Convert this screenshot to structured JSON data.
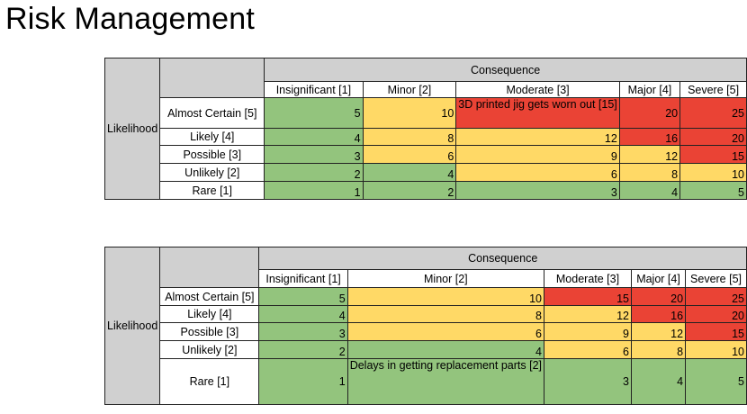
{
  "title": "Risk Management",
  "colors": {
    "green": "#93c47d",
    "yellow": "#ffd966",
    "red": "#ea4335",
    "gray": "#d0d0d0"
  },
  "matrix1": {
    "consequence": "Consequence",
    "likelihood": "Likelihood",
    "columns": [
      "Insignificant [1]",
      "Minor [2]",
      "Moderate [3]",
      "Major [4]",
      "Severe [5]"
    ],
    "rows": [
      {
        "label": "Almost Certain [5]",
        "cells": [
          "5",
          "10",
          "",
          "20",
          "25"
        ],
        "note": "3D printed jig gets worn out [15]"
      },
      {
        "label": "Likely [4]",
        "cells": [
          "4",
          "8",
          "12",
          "16",
          "20"
        ]
      },
      {
        "label": "Possible [3]",
        "cells": [
          "3",
          "6",
          "9",
          "12",
          "15"
        ]
      },
      {
        "label": "Unlikely [2]",
        "cells": [
          "2",
          "4",
          "6",
          "8",
          "10"
        ]
      },
      {
        "label": "Rare [1]",
        "cells": [
          "1",
          "2",
          "3",
          "4",
          "5"
        ]
      }
    ]
  },
  "matrix2": {
    "consequence": "Consequence",
    "likelihood": "Likelihood",
    "columns": [
      "Insignificant [1]",
      "Minor [2]",
      "Moderate [3]",
      "Major [4]",
      "Severe [5]"
    ],
    "rows": [
      {
        "label": "Almost Certain [5]",
        "cells": [
          "5",
          "10",
          "15",
          "20",
          "25"
        ]
      },
      {
        "label": "Likely [4]",
        "cells": [
          "4",
          "8",
          "12",
          "16",
          "20"
        ]
      },
      {
        "label": "Possible [3]",
        "cells": [
          "3",
          "6",
          "9",
          "12",
          "15"
        ]
      },
      {
        "label": "Unlikely [2]",
        "cells": [
          "2",
          "4",
          "6",
          "8",
          "10"
        ]
      },
      {
        "label": "Rare [1]",
        "cells": [
          "1",
          "",
          "3",
          "4",
          "5"
        ],
        "note": "Delays in getting replacement parts [2]"
      }
    ]
  }
}
